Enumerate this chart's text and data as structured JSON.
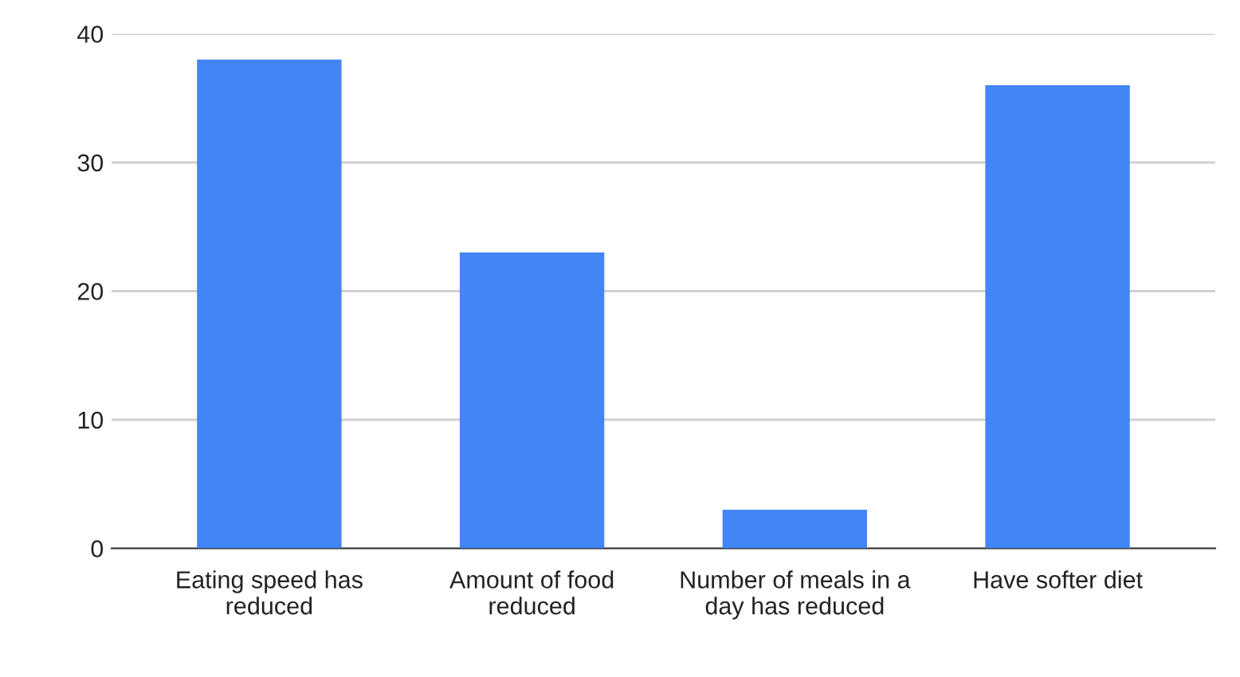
{
  "chart_data": {
    "type": "bar",
    "categories": [
      "Eating speed has reduced",
      "Amount of food reduced",
      "Number of meals in a day has reduced",
      "Have softer diet"
    ],
    "values": [
      38,
      23,
      3,
      36
    ],
    "color": "#4285f4",
    "ylim": [
      0,
      40
    ],
    "yticks": [
      0,
      10,
      20,
      30,
      40
    ],
    "grid": "y",
    "legend": false
  }
}
